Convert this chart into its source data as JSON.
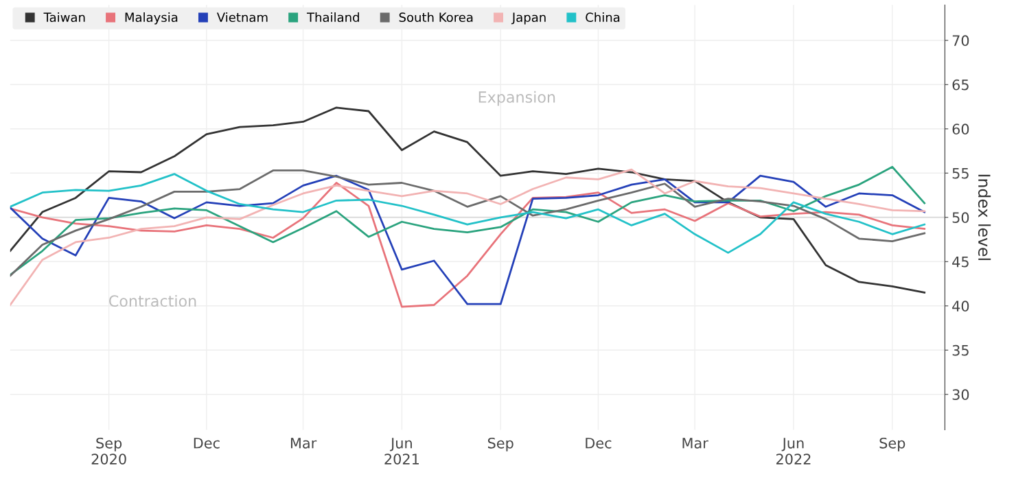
{
  "chart_data": {
    "type": "line",
    "ylabel": "Index level",
    "x": [
      "2020-06",
      "2020-07",
      "2020-08",
      "2020-09",
      "2020-10",
      "2020-11",
      "2020-12",
      "2021-01",
      "2021-02",
      "2021-03",
      "2021-04",
      "2021-05",
      "2021-06",
      "2021-07",
      "2021-08",
      "2021-09",
      "2021-10",
      "2021-11",
      "2021-12",
      "2022-01",
      "2022-02",
      "2022-03",
      "2022-04",
      "2022-05",
      "2022-06",
      "2022-07",
      "2022-08",
      "2022-09",
      "2022-10"
    ],
    "series": [
      {
        "name": "Taiwan",
        "color": "#333333",
        "values": [
          46.2,
          50.6,
          52.2,
          55.2,
          55.1,
          56.9,
          59.4,
          60.2,
          60.4,
          60.8,
          62.4,
          62.0,
          57.6,
          59.7,
          58.5,
          54.7,
          55.2,
          54.9,
          55.5,
          55.1,
          54.3,
          54.1,
          51.7,
          50.0,
          49.8,
          44.6,
          42.7,
          42.2,
          41.5
        ]
      },
      {
        "name": "Malaysia",
        "color": "#e8737a",
        "values": [
          51.0,
          50.0,
          49.3,
          49.0,
          48.5,
          48.4,
          49.1,
          48.7,
          47.7,
          49.9,
          53.9,
          51.3,
          39.9,
          40.1,
          43.4,
          48.1,
          52.2,
          52.3,
          52.8,
          50.5,
          50.9,
          49.6,
          51.6,
          50.1,
          50.4,
          50.6,
          50.3,
          49.1,
          48.7
        ]
      },
      {
        "name": "Vietnam",
        "color": "#2440b8",
        "values": [
          51.1,
          47.6,
          45.7,
          52.2,
          51.8,
          49.9,
          51.7,
          51.3,
          51.6,
          53.6,
          54.7,
          53.1,
          44.1,
          45.1,
          40.2,
          40.2,
          52.1,
          52.2,
          52.5,
          53.7,
          54.3,
          51.7,
          51.7,
          54.7,
          54.0,
          51.2,
          52.7,
          52.5,
          50.6
        ]
      },
      {
        "name": "Thailand",
        "color": "#2aa37e",
        "values": [
          43.5,
          46.2,
          49.7,
          49.9,
          50.5,
          51.0,
          50.8,
          49.0,
          47.2,
          48.8,
          50.7,
          47.8,
          49.5,
          48.7,
          48.3,
          48.9,
          50.9,
          50.6,
          49.5,
          51.7,
          52.5,
          51.8,
          51.9,
          51.9,
          50.7,
          52.4,
          53.7,
          55.7,
          51.6
        ]
      },
      {
        "name": "South Korea",
        "color": "#6b6b6b",
        "values": [
          43.4,
          46.9,
          48.5,
          49.8,
          51.2,
          52.9,
          52.9,
          53.2,
          55.3,
          55.3,
          54.6,
          53.7,
          53.9,
          53.0,
          51.2,
          52.4,
          50.2,
          50.9,
          51.9,
          52.8,
          53.8,
          51.2,
          52.1,
          51.8,
          51.3,
          49.8,
          47.6,
          47.3,
          48.2
        ]
      },
      {
        "name": "Japan",
        "color": "#f2b3b3",
        "values": [
          40.1,
          45.2,
          47.2,
          47.7,
          48.7,
          49.0,
          50.0,
          49.8,
          51.4,
          52.7,
          53.6,
          53.0,
          52.4,
          53.0,
          52.7,
          51.5,
          53.2,
          54.5,
          54.3,
          55.4,
          52.7,
          54.1,
          53.5,
          53.3,
          52.7,
          52.1,
          51.5,
          50.8,
          50.7
        ]
      },
      {
        "name": "China",
        "color": "#22c1c8",
        "values": [
          51.2,
          52.8,
          53.1,
          53.0,
          53.6,
          54.9,
          53.0,
          51.5,
          50.9,
          50.6,
          51.9,
          52.0,
          51.3,
          50.3,
          49.2,
          50.0,
          50.6,
          49.9,
          50.9,
          49.1,
          50.4,
          48.1,
          46.0,
          48.1,
          51.7,
          50.4,
          49.5,
          48.1,
          49.2
        ]
      }
    ],
    "xlim": [
      "2020-06-01",
      "2022-10-20"
    ],
    "xticks": [
      {
        "value": "2020-09-01",
        "label": "Sep\n2020"
      },
      {
        "value": "2020-12-01",
        "label": "Dec"
      },
      {
        "value": "2021-03-01",
        "label": "Mar"
      },
      {
        "value": "2021-06-01",
        "label": "Jun\n2021"
      },
      {
        "value": "2021-09-01",
        "label": "Sep"
      },
      {
        "value": "2021-12-01",
        "label": "Dec"
      },
      {
        "value": "2022-03-01",
        "label": "Mar"
      },
      {
        "value": "2022-06-01",
        "label": "Jun\n2022"
      },
      {
        "value": "2022-09-01",
        "label": "Sep"
      }
    ],
    "ylim": [
      26,
      74
    ],
    "yticks": [
      30,
      35,
      40,
      45,
      50,
      55,
      60,
      65,
      70
    ],
    "ref_lines": [
      {
        "axis": "y",
        "value": 50,
        "label": null,
        "color": "#dcdcdc"
      }
    ],
    "annotations": [
      "Expansion",
      "Contraction"
    ],
    "grid": true,
    "legend": "top left",
    "marker": "none",
    "line_style": "solid"
  }
}
